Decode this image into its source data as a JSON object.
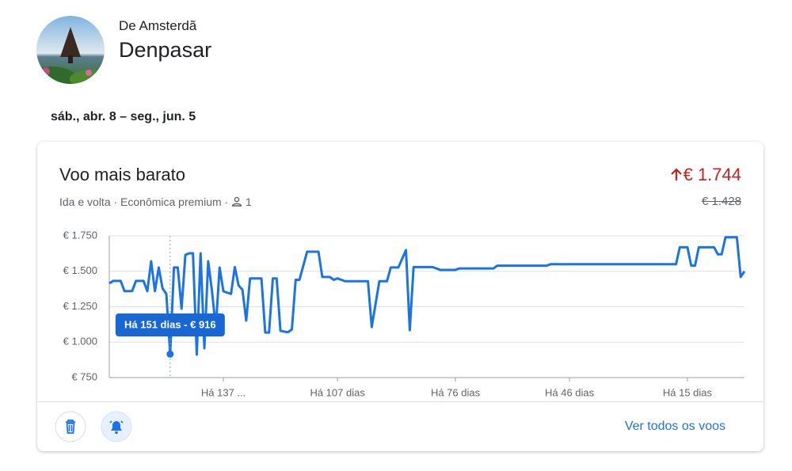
{
  "header": {
    "origin": "De Amsterdã",
    "destination": "Denpasar",
    "dates": "sáb., abr. 8 – seg., jun. 5"
  },
  "card": {
    "title": "Voo mais barato",
    "trip": "Ida e volta · Econômica premium ·",
    "passengers": 1,
    "price": "€ 1.744",
    "previous_price": "€ 1.428",
    "link": "Ver todos os voos"
  },
  "chart_data": {
    "type": "line",
    "color": "#1a73e8",
    "grid": true,
    "xlim": [
      167,
      0
    ],
    "xticks": [
      {
        "value": 137,
        "label": "Há 137 ..."
      },
      {
        "value": 107,
        "label": "Há 107 dias"
      },
      {
        "value": 76,
        "label": "Há 76 dias"
      },
      {
        "value": 46,
        "label": "Há 46 dias"
      },
      {
        "value": 15,
        "label": "Há 15 dias"
      }
    ],
    "ylim": [
      750,
      1750
    ],
    "yticks": [
      {
        "value": 750,
        "label": "€ 750"
      },
      {
        "value": 1000,
        "label": "€ 1.000"
      },
      {
        "value": 1250,
        "label": "€ 1.250"
      },
      {
        "value": 1500,
        "label": "€ 1.500"
      },
      {
        "value": 1750,
        "label": "€ 1.750"
      }
    ],
    "x": [
      167,
      166,
      164,
      163,
      161,
      160,
      158,
      157,
      156,
      155,
      154,
      153,
      152,
      151,
      150,
      149,
      148,
      147,
      146,
      145,
      144,
      143,
      142,
      141,
      140,
      139,
      138,
      137,
      135,
      134,
      133,
      132,
      131,
      130,
      127,
      126,
      125,
      124,
      123,
      122,
      120,
      119,
      118,
      117,
      115,
      112,
      111,
      109,
      108,
      107,
      105,
      99,
      98,
      96,
      94,
      93,
      91,
      89,
      88,
      87,
      82,
      80,
      76,
      75,
      66,
      65,
      52,
      51,
      18,
      17,
      15,
      14,
      13,
      12,
      8,
      7,
      6,
      5,
      2,
      1,
      0
    ],
    "values": [
      1415,
      1432,
      1432,
      1360,
      1360,
      1432,
      1432,
      1360,
      1571,
      1360,
      1527,
      1380,
      1340,
      916,
      1527,
      1527,
      1236,
      1616,
      1627,
      1627,
      912,
      1627,
      957,
      1571,
      1360,
      1100,
      1527,
      1359,
      1340,
      1530,
      1400,
      1370,
      1152,
      1450,
      1450,
      1068,
      1068,
      1450,
      1450,
      1080,
      1070,
      1090,
      1440,
      1440,
      1638,
      1638,
      1460,
      1460,
      1440,
      1450,
      1430,
      1430,
      1107,
      1430,
      1430,
      1527,
      1527,
      1650,
      1085,
      1530,
      1530,
      1510,
      1510,
      1520,
      1520,
      1540,
      1540,
      1550,
      1550,
      1670,
      1670,
      1540,
      1540,
      1670,
      1670,
      1620,
      1620,
      1740,
      1740,
      1460,
      1500
    ],
    "highlight": {
      "x": 151,
      "y": 916,
      "label": "Há 151 dias - € 916"
    }
  }
}
